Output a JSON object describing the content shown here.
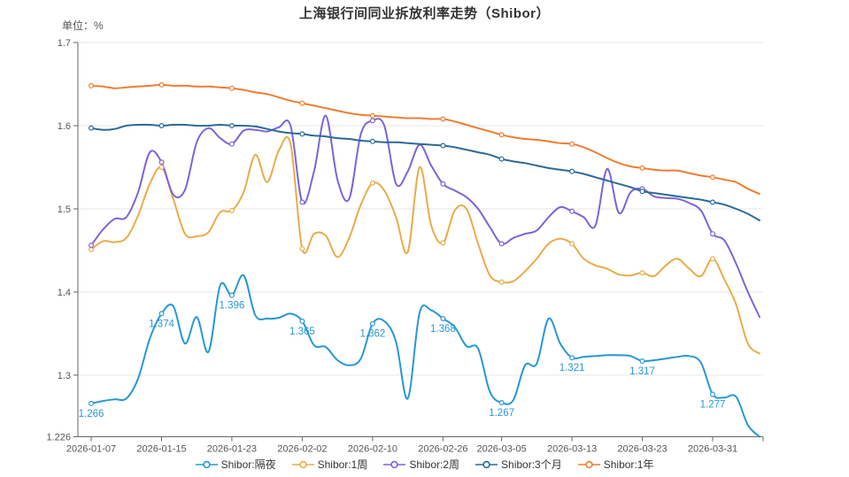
{
  "chart_data": {
    "type": "line",
    "title": "上海银行间同业拆放利率走势（Shibor）",
    "unit_label": "单位：%",
    "grid": true,
    "legend_position": "bottom",
    "background_color": "#ffffff",
    "grid_color": "#e6e6e6",
    "axis_color": "#666666",
    "axis_label_color": "#555555",
    "y_axis": {
      "min": 1.226,
      "max": 1.7,
      "tick_values": [
        1.7,
        1.6,
        1.5,
        1.4,
        1.3,
        1.226
      ],
      "tick_labels": [
        "1.7",
        "1.6",
        "1.5",
        "1.4",
        "1.3",
        "1.226"
      ]
    },
    "x_axis": {
      "tick_labels": [
        "2026-01-07",
        "2026-01-15",
        "2026-01-23",
        "2026-02-02",
        "2026-02-10",
        "2026-02-26",
        "2026-03-05",
        "2026-03-13",
        "2026-03-23",
        "2026-03-31"
      ],
      "tick_indices": [
        0,
        6,
        12,
        18,
        24,
        30,
        35,
        41,
        47,
        53
      ],
      "n_points": 58
    },
    "series": [
      {
        "name": "Shibor:隔夜",
        "color": "#2898d3",
        "annotated": true,
        "point_labels": [
          "1.266",
          "1.374",
          "1.396",
          "1.365",
          "1.362",
          "1.368",
          "1.267",
          "1.321",
          "1.317",
          "1.277"
        ],
        "values": [
          1.266,
          1.269,
          1.271,
          1.272,
          1.296,
          1.344,
          1.374,
          1.383,
          1.338,
          1.37,
          1.328,
          1.408,
          1.396,
          1.42,
          1.372,
          1.368,
          1.369,
          1.374,
          1.365,
          1.336,
          1.334,
          1.318,
          1.312,
          1.32,
          1.362,
          1.365,
          1.34,
          1.272,
          1.375,
          1.378,
          1.368,
          1.358,
          1.335,
          1.332,
          1.28,
          1.267,
          1.27,
          1.312,
          1.314,
          1.368,
          1.338,
          1.321,
          1.322,
          1.323,
          1.324,
          1.324,
          1.323,
          1.317,
          1.318,
          1.32,
          1.322,
          1.323,
          1.315,
          1.277,
          1.273,
          1.274,
          1.24,
          1.226
        ]
      },
      {
        "name": "Shibor:1周",
        "color": "#e8ac4a",
        "annotated": false,
        "values": [
          1.451,
          1.461,
          1.46,
          1.465,
          1.492,
          1.53,
          1.55,
          1.512,
          1.47,
          1.467,
          1.472,
          1.496,
          1.498,
          1.52,
          1.565,
          1.532,
          1.57,
          1.578,
          1.452,
          1.47,
          1.468,
          1.442,
          1.465,
          1.505,
          1.531,
          1.522,
          1.49,
          1.448,
          1.55,
          1.48,
          1.459,
          1.498,
          1.5,
          1.458,
          1.42,
          1.412,
          1.413,
          1.425,
          1.44,
          1.458,
          1.464,
          1.458,
          1.44,
          1.432,
          1.428,
          1.421,
          1.42,
          1.423,
          1.419,
          1.432,
          1.44,
          1.428,
          1.419,
          1.44,
          1.415,
          1.385,
          1.338,
          1.326
        ]
      },
      {
        "name": "Shibor:2周",
        "color": "#7e63d8",
        "annotated": false,
        "values": [
          1.456,
          1.475,
          1.488,
          1.49,
          1.52,
          1.568,
          1.556,
          1.517,
          1.523,
          1.58,
          1.597,
          1.585,
          1.578,
          1.594,
          1.595,
          1.593,
          1.598,
          1.6,
          1.508,
          1.545,
          1.612,
          1.535,
          1.512,
          1.59,
          1.606,
          1.6,
          1.53,
          1.545,
          1.577,
          1.552,
          1.53,
          1.522,
          1.514,
          1.5,
          1.478,
          1.458,
          1.465,
          1.47,
          1.474,
          1.49,
          1.502,
          1.497,
          1.49,
          1.48,
          1.548,
          1.495,
          1.52,
          1.524,
          1.515,
          1.513,
          1.512,
          1.507,
          1.498,
          1.47,
          1.462,
          1.434,
          1.4,
          1.37
        ]
      },
      {
        "name": "Shibor:3个月",
        "color": "#2c6a99",
        "annotated": false,
        "values": [
          1.597,
          1.595,
          1.596,
          1.6,
          1.601,
          1.601,
          1.6,
          1.601,
          1.601,
          1.6,
          1.6,
          1.601,
          1.6,
          1.6,
          1.599,
          1.596,
          1.593,
          1.591,
          1.59,
          1.588,
          1.587,
          1.585,
          1.584,
          1.582,
          1.581,
          1.58,
          1.58,
          1.579,
          1.578,
          1.577,
          1.576,
          1.574,
          1.571,
          1.568,
          1.565,
          1.56,
          1.557,
          1.555,
          1.552,
          1.549,
          1.547,
          1.545,
          1.542,
          1.538,
          1.534,
          1.53,
          1.526,
          1.521,
          1.519,
          1.517,
          1.515,
          1.513,
          1.511,
          1.508,
          1.505,
          1.5,
          1.494,
          1.486
        ]
      },
      {
        "name": "Shibor:1年",
        "color": "#ee7e32",
        "annotated": false,
        "values": [
          1.648,
          1.647,
          1.645,
          1.646,
          1.647,
          1.648,
          1.649,
          1.648,
          1.648,
          1.647,
          1.647,
          1.646,
          1.645,
          1.643,
          1.64,
          1.638,
          1.634,
          1.63,
          1.627,
          1.624,
          1.621,
          1.618,
          1.615,
          1.613,
          1.612,
          1.611,
          1.61,
          1.609,
          1.609,
          1.608,
          1.608,
          1.605,
          1.601,
          1.597,
          1.593,
          1.589,
          1.586,
          1.584,
          1.583,
          1.581,
          1.579,
          1.578,
          1.574,
          1.568,
          1.561,
          1.555,
          1.551,
          1.549,
          1.547,
          1.546,
          1.546,
          1.543,
          1.54,
          1.538,
          1.535,
          1.532,
          1.524,
          1.518
        ]
      }
    ]
  }
}
